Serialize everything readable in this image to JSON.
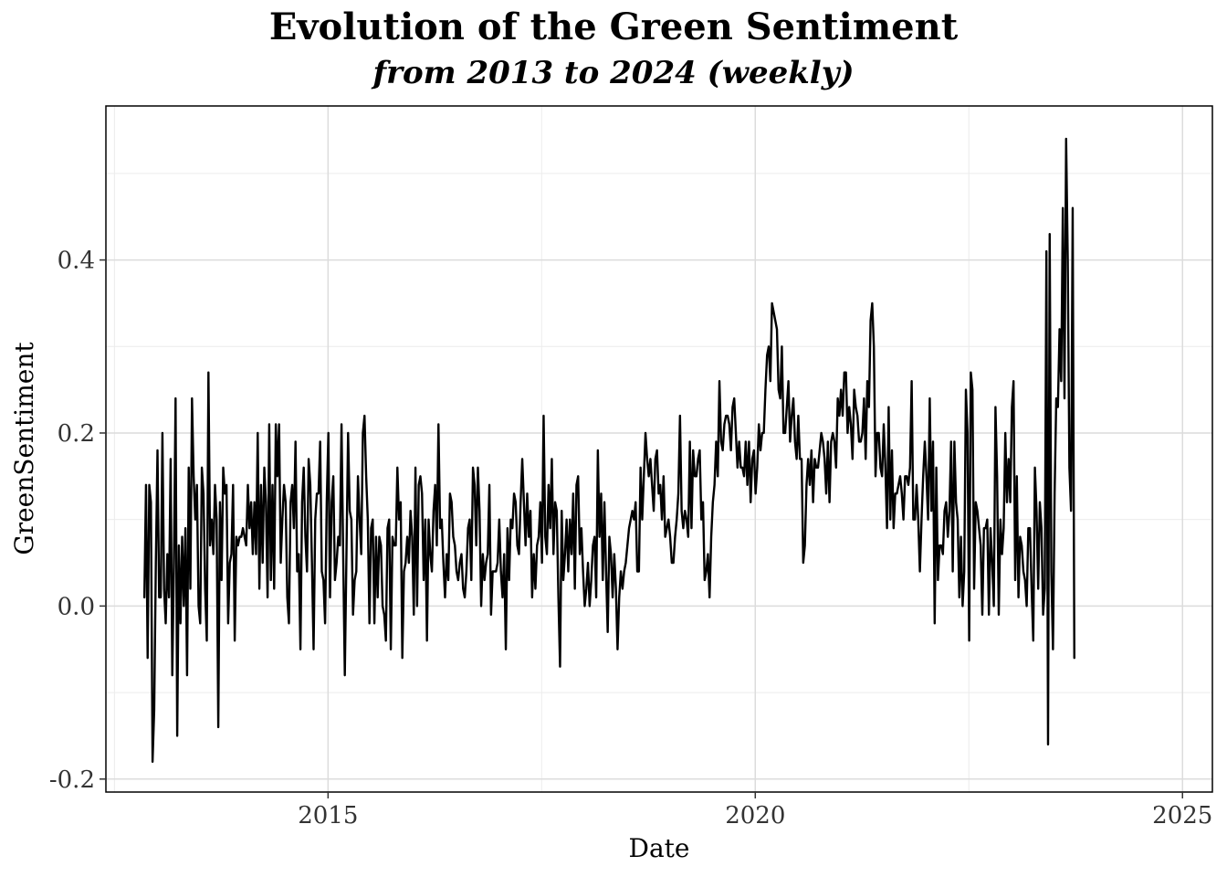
{
  "chart_data": {
    "type": "line",
    "title": "Evolution of the Green Sentiment",
    "subtitle": "from 2013 to 2024 (weekly)",
    "xlabel": "Date",
    "ylabel": "GreenSentiment",
    "x_start": 2012.85,
    "x_step": 0.01923,
    "xlim": [
      2012.4,
      2025.35
    ],
    "ylim": [
      -0.215,
      0.578
    ],
    "x_ticks": [
      {
        "value": 2015,
        "label": "2015"
      },
      {
        "value": 2020,
        "label": "2020"
      },
      {
        "value": 2025,
        "label": "2025"
      }
    ],
    "y_ticks": [
      {
        "value": -0.2,
        "label": "-0.2"
      },
      {
        "value": 0.0,
        "label": "0.0"
      },
      {
        "value": 0.2,
        "label": "0.2"
      },
      {
        "value": 0.4,
        "label": "0.4"
      }
    ],
    "grid": true,
    "line_color": "#000000",
    "values": [
      0.01,
      0.14,
      -0.06,
      0.14,
      0.12,
      -0.18,
      -0.12,
      0.05,
      0.18,
      0.01,
      0.01,
      0.2,
      0.02,
      -0.02,
      0.06,
      0.01,
      0.17,
      -0.08,
      0.05,
      0.24,
      -0.15,
      0.07,
      -0.02,
      0.08,
      0.0,
      0.09,
      -0.08,
      0.16,
      0.02,
      0.24,
      0.15,
      0.1,
      0.14,
      0.0,
      -0.02,
      0.16,
      0.13,
      0.02,
      -0.04,
      0.27,
      0.07,
      0.1,
      0.06,
      0.14,
      0.1,
      -0.14,
      0.12,
      0.03,
      0.16,
      0.13,
      0.14,
      -0.02,
      0.05,
      0.06,
      0.14,
      -0.04,
      0.08,
      0.07,
      0.08,
      0.08,
      0.09,
      0.08,
      0.07,
      0.14,
      0.09,
      0.12,
      0.06,
      0.12,
      0.06,
      0.2,
      0.02,
      0.14,
      0.05,
      0.16,
      0.12,
      0.01,
      0.21,
      0.03,
      0.14,
      0.02,
      0.21,
      0.15,
      0.21,
      0.05,
      0.1,
      0.14,
      0.12,
      0.01,
      -0.02,
      0.12,
      0.14,
      0.09,
      0.19,
      0.04,
      0.06,
      -0.05,
      0.12,
      0.16,
      0.08,
      0.04,
      0.17,
      0.14,
      0.05,
      -0.05,
      0.1,
      0.13,
      0.13,
      0.19,
      0.04,
      0.03,
      -0.02,
      0.12,
      0.2,
      0.01,
      0.12,
      0.15,
      0.03,
      0.05,
      0.08,
      0.07,
      0.21,
      0.06,
      -0.08,
      0.06,
      0.2,
      0.11,
      0.1,
      -0.01,
      0.03,
      0.04,
      0.15,
      0.1,
      0.06,
      0.2,
      0.22,
      0.15,
      0.1,
      -0.02,
      0.09,
      0.1,
      -0.02,
      0.08,
      0.01,
      0.08,
      0.07,
      0.0,
      -0.01,
      -0.04,
      0.09,
      0.1,
      -0.05,
      0.08,
      0.07,
      0.07,
      0.16,
      0.1,
      0.12,
      -0.06,
      0.04,
      0.05,
      0.08,
      0.05,
      0.11,
      0.08,
      -0.01,
      0.16,
      0.0,
      0.14,
      0.15,
      0.13,
      0.03,
      0.1,
      -0.04,
      0.1,
      0.06,
      0.04,
      0.11,
      0.14,
      0.07,
      0.21,
      0.09,
      0.1,
      0.05,
      0.01,
      0.06,
      0.03,
      0.13,
      0.12,
      0.08,
      0.07,
      0.04,
      0.03,
      0.05,
      0.06,
      0.02,
      0.01,
      0.04,
      0.09,
      0.1,
      0.03,
      0.16,
      0.14,
      0.07,
      0.16,
      0.11,
      0.0,
      0.06,
      0.03,
      0.05,
      0.06,
      0.14,
      -0.01,
      0.04,
      0.04,
      0.04,
      0.05,
      0.1,
      0.04,
      0.01,
      0.06,
      -0.05,
      0.09,
      0.03,
      0.1,
      0.09,
      0.13,
      0.12,
      0.07,
      0.06,
      0.12,
      0.17,
      0.12,
      0.07,
      0.13,
      0.08,
      0.11,
      0.01,
      0.06,
      0.02,
      0.07,
      0.08,
      0.12,
      0.05,
      0.22,
      0.08,
      0.06,
      0.14,
      0.09,
      0.17,
      0.06,
      0.12,
      0.11,
      0.01,
      -0.07,
      0.11,
      0.03,
      0.06,
      0.1,
      0.04,
      0.1,
      0.06,
      0.13,
      0.02,
      0.14,
      0.15,
      0.06,
      0.09,
      0.04,
      0.0,
      0.02,
      0.05,
      0.0,
      0.03,
      0.07,
      0.08,
      0.01,
      0.18,
      0.08,
      0.13,
      0.03,
      0.12,
      0.04,
      -0.03,
      0.08,
      0.06,
      0.01,
      0.06,
      0.02,
      -0.05,
      0.01,
      0.04,
      0.02,
      0.04,
      0.05,
      0.07,
      0.09,
      0.1,
      0.11,
      0.1,
      0.12,
      0.04,
      0.04,
      0.16,
      0.1,
      0.15,
      0.2,
      0.17,
      0.15,
      0.17,
      0.14,
      0.11,
      0.17,
      0.18,
      0.13,
      0.14,
      0.1,
      0.15,
      0.08,
      0.09,
      0.1,
      0.08,
      0.05,
      0.05,
      0.08,
      0.1,
      0.13,
      0.22,
      0.11,
      0.09,
      0.11,
      0.1,
      0.08,
      0.19,
      0.09,
      0.18,
      0.15,
      0.15,
      0.17,
      0.18,
      0.1,
      0.12,
      0.03,
      0.04,
      0.06,
      0.01,
      0.08,
      0.12,
      0.14,
      0.19,
      0.15,
      0.26,
      0.19,
      0.18,
      0.21,
      0.22,
      0.22,
      0.21,
      0.18,
      0.23,
      0.24,
      0.2,
      0.16,
      0.19,
      0.16,
      0.16,
      0.15,
      0.19,
      0.14,
      0.19,
      0.12,
      0.17,
      0.18,
      0.13,
      0.16,
      0.21,
      0.18,
      0.2,
      0.2,
      0.25,
      0.29,
      0.3,
      0.26,
      0.35,
      0.34,
      0.33,
      0.32,
      0.25,
      0.24,
      0.3,
      0.2,
      0.2,
      0.23,
      0.26,
      0.19,
      0.22,
      0.24,
      0.19,
      0.17,
      0.22,
      0.17,
      0.17,
      0.05,
      0.07,
      0.14,
      0.17,
      0.14,
      0.18,
      0.12,
      0.17,
      0.16,
      0.16,
      0.18,
      0.2,
      0.19,
      0.17,
      0.13,
      0.19,
      0.12,
      0.19,
      0.2,
      0.19,
      0.16,
      0.24,
      0.22,
      0.25,
      0.22,
      0.27,
      0.27,
      0.2,
      0.23,
      0.21,
      0.17,
      0.25,
      0.23,
      0.22,
      0.19,
      0.19,
      0.2,
      0.24,
      0.17,
      0.26,
      0.23,
      0.33,
      0.35,
      0.3,
      0.15,
      0.2,
      0.2,
      0.16,
      0.15,
      0.21,
      0.16,
      0.09,
      0.23,
      0.1,
      0.18,
      0.09,
      0.13,
      0.13,
      0.14,
      0.15,
      0.13,
      0.1,
      0.15,
      0.15,
      0.14,
      0.16,
      0.26,
      0.1,
      0.1,
      0.14,
      0.1,
      0.04,
      0.1,
      0.15,
      0.19,
      0.15,
      0.1,
      0.24,
      0.11,
      0.19,
      -0.02,
      0.16,
      0.03,
      0.07,
      0.07,
      0.06,
      0.11,
      0.12,
      0.08,
      0.11,
      0.19,
      0.04,
      0.19,
      0.12,
      0.1,
      0.01,
      0.08,
      0.0,
      0.04,
      0.25,
      0.2,
      -0.04,
      0.27,
      0.25,
      0.02,
      0.12,
      0.11,
      0.09,
      0.07,
      -0.01,
      0.09,
      0.09,
      0.1,
      -0.01,
      0.09,
      0.05,
      0.0,
      0.23,
      0.15,
      -0.01,
      0.1,
      0.06,
      0.09,
      0.2,
      0.12,
      0.17,
      0.12,
      0.23,
      0.26,
      0.03,
      0.15,
      0.01,
      0.08,
      0.07,
      0.04,
      0.03,
      0.0,
      0.09,
      0.09,
      0.02,
      -0.04,
      0.16,
      0.11,
      0.02,
      0.12,
      0.09,
      -0.01,
      0.02,
      0.41,
      -0.16,
      0.43,
      0.04,
      -0.05,
      0.13,
      0.24,
      0.23,
      0.32,
      0.26,
      0.46,
      0.24,
      0.54,
      0.4,
      0.16,
      0.11,
      0.46,
      -0.06
    ]
  }
}
